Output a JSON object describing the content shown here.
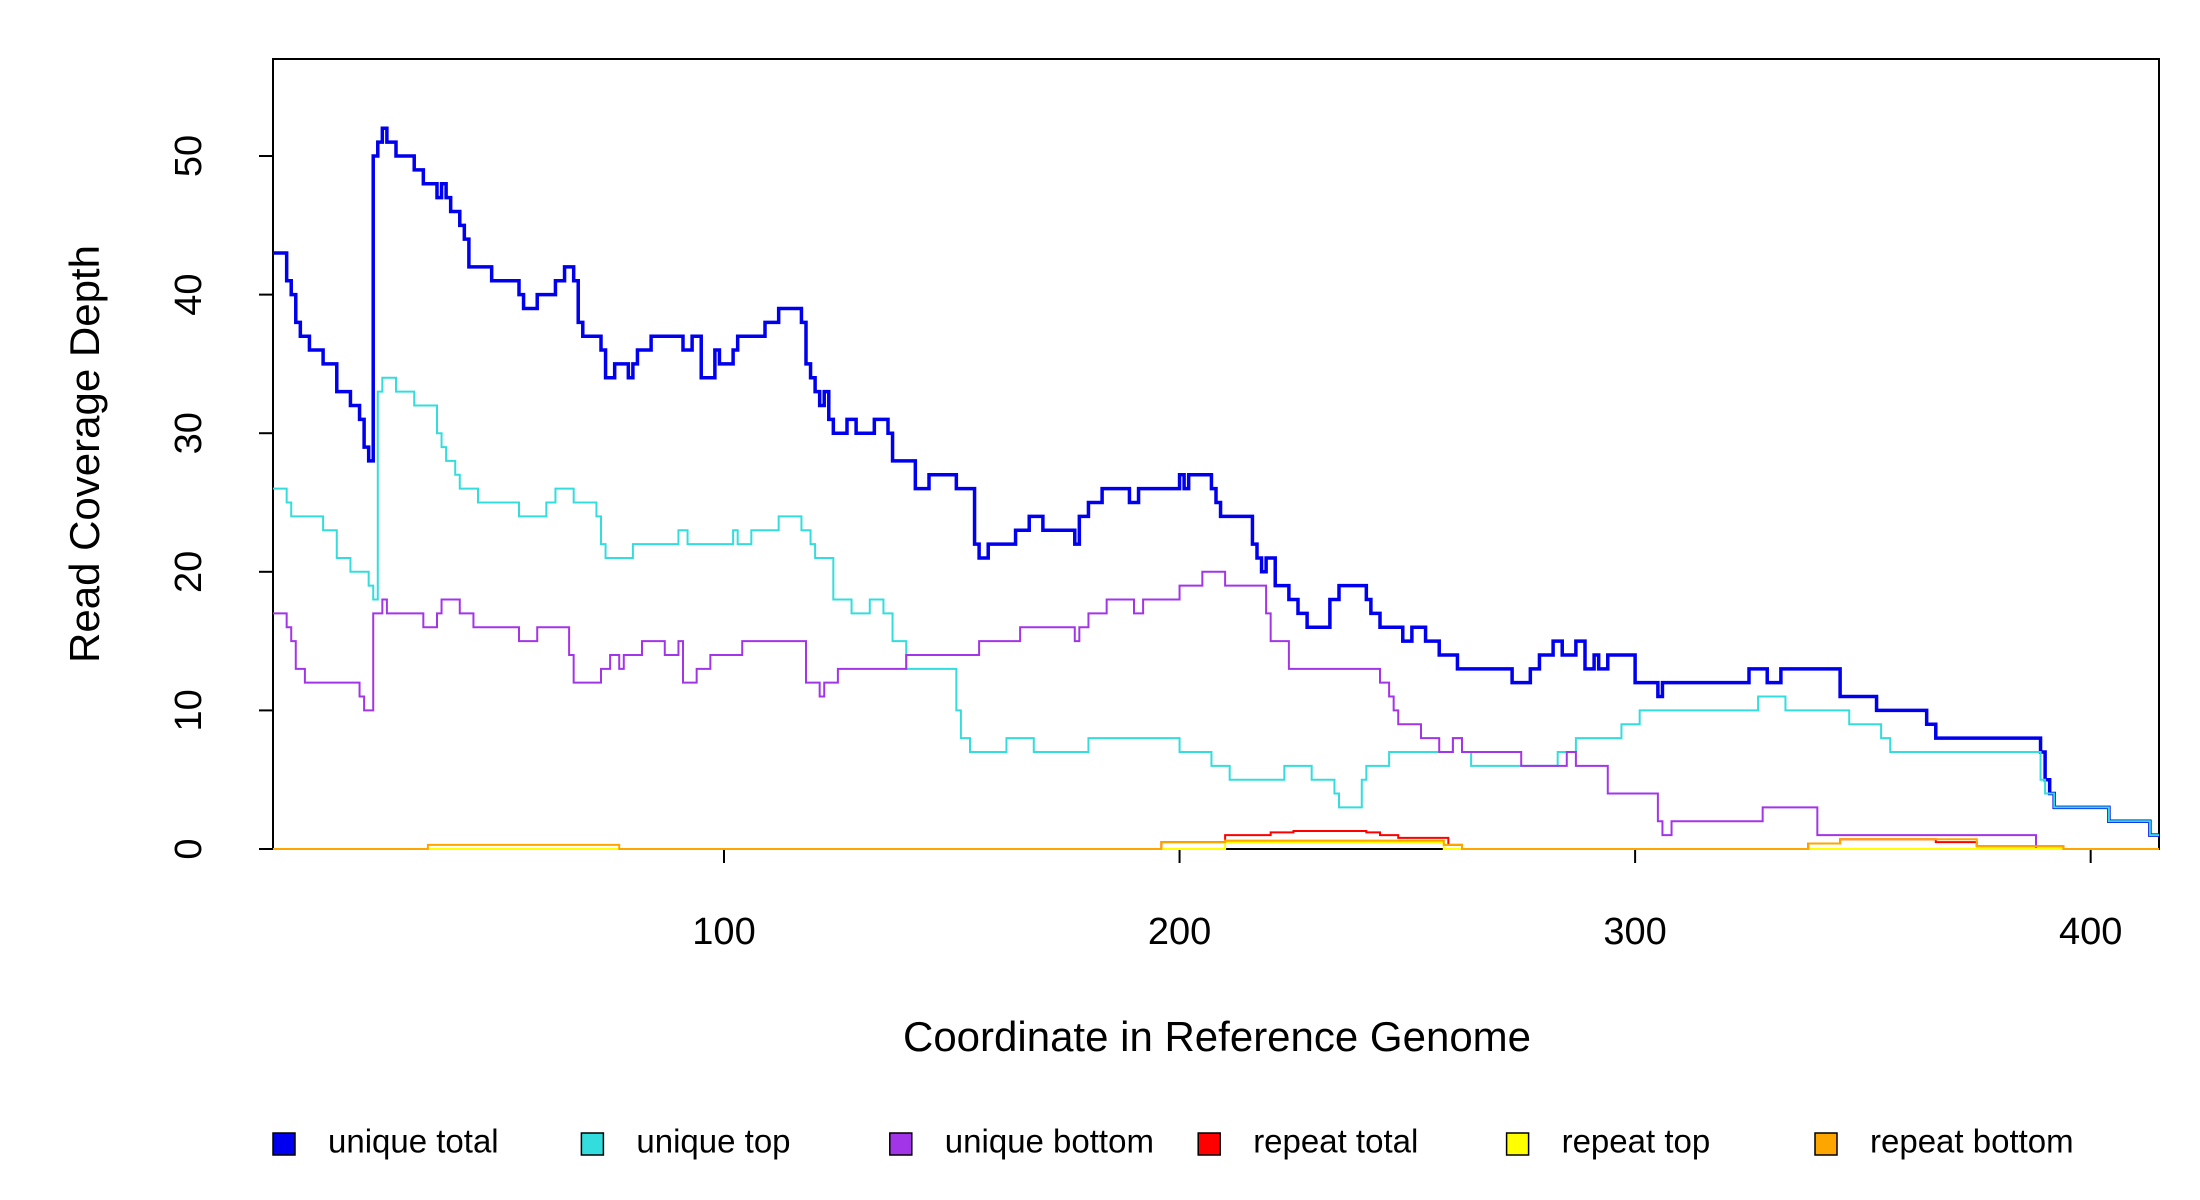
{
  "chart_data": {
    "type": "step",
    "xlabel": "Coordinate in Reference Genome",
    "ylabel": "Read Coverage Depth",
    "xlim": [
      1,
      415
    ],
    "ylim": [
      0,
      57
    ],
    "xticks": [
      100,
      200,
      300,
      400
    ],
    "yticks": [
      0,
      10,
      20,
      30,
      40,
      50
    ],
    "series": [
      {
        "name": "unique total",
        "color": "#0000ee",
        "x": [
          1,
          4,
          5,
          6,
          7,
          9,
          12,
          15,
          18,
          20,
          21,
          22,
          23,
          24,
          25,
          26,
          28,
          32,
          34,
          37,
          38,
          39,
          40,
          42,
          43,
          44,
          49,
          55,
          56,
          59,
          63,
          65,
          67,
          68,
          69,
          73,
          74,
          76,
          79,
          80,
          81,
          84,
          91,
          93,
          95,
          98,
          99,
          102,
          103,
          109,
          112,
          117,
          118,
          119,
          120,
          121,
          122,
          123,
          124,
          127,
          129,
          133,
          136,
          137,
          142,
          145,
          151,
          155,
          156,
          158,
          164,
          167,
          170,
          177,
          178,
          180,
          183,
          189,
          191,
          200,
          201,
          202,
          207,
          208,
          209,
          216,
          217,
          218,
          219,
          221,
          224,
          226,
          228,
          233,
          235,
          241,
          242,
          244,
          249,
          251,
          254,
          257,
          261,
          273,
          277,
          279,
          282,
          284,
          287,
          289,
          291,
          292,
          294,
          300,
          305,
          306,
          325,
          329,
          332,
          345,
          353,
          364,
          366,
          389,
          390,
          391,
          392,
          404,
          413,
          415
        ],
        "values": [
          43,
          41,
          40,
          38,
          37,
          36,
          35,
          33,
          32,
          31,
          29,
          28,
          50,
          51,
          52,
          51,
          50,
          49,
          48,
          47,
          48,
          47,
          46,
          45,
          44,
          42,
          41,
          40,
          39,
          40,
          41,
          42,
          41,
          38,
          37,
          36,
          34,
          35,
          34,
          35,
          36,
          37,
          36,
          37,
          34,
          36,
          35,
          36,
          37,
          38,
          39,
          38,
          35,
          34,
          33,
          32,
          33,
          31,
          30,
          31,
          30,
          31,
          30,
          28,
          26,
          27,
          26,
          22,
          21,
          22,
          23,
          24,
          23,
          22,
          24,
          25,
          26,
          25,
          26,
          27,
          26,
          27,
          26,
          25,
          24,
          22,
          21,
          20,
          21,
          19,
          18,
          17,
          16,
          18,
          19,
          18,
          17,
          16,
          15,
          16,
          15,
          14,
          13,
          12,
          13,
          14,
          15,
          14,
          15,
          13,
          14,
          13,
          14,
          12,
          11,
          12,
          13,
          12,
          13,
          11,
          10,
          9,
          8,
          7,
          5,
          4,
          3,
          2,
          1,
          1
        ]
      },
      {
        "name": "unique top",
        "color": "#33dddd",
        "x": [
          1,
          4,
          5,
          12,
          15,
          18,
          22,
          23,
          24,
          25,
          28,
          32,
          37,
          38,
          39,
          41,
          42,
          46,
          55,
          61,
          63,
          67,
          72,
          73,
          74,
          80,
          90,
          92,
          102,
          103,
          106,
          112,
          117,
          119,
          120,
          124,
          128,
          132,
          135,
          137,
          140,
          151,
          152,
          154,
          162,
          168,
          180,
          200,
          207,
          211,
          223,
          229,
          234,
          235,
          240,
          241,
          246,
          260,
          262,
          264,
          283,
          287,
          297,
          301,
          327,
          333,
          347,
          354,
          356,
          389,
          390,
          392,
          404,
          413,
          415
        ],
        "values": [
          26,
          25,
          24,
          23,
          21,
          20,
          19,
          18,
          33,
          34,
          33,
          32,
          30,
          29,
          28,
          27,
          26,
          25,
          24,
          25,
          26,
          25,
          24,
          22,
          21,
          22,
          23,
          22,
          23,
          22,
          23,
          24,
          23,
          22,
          21,
          18,
          17,
          18,
          17,
          15,
          13,
          10,
          8,
          7,
          8,
          7,
          8,
          7,
          6,
          5,
          6,
          5,
          4,
          3,
          5,
          6,
          7,
          8,
          7,
          6,
          7,
          8,
          9,
          10,
          11,
          10,
          9,
          8,
          7,
          5,
          4,
          3,
          2,
          1,
          1
        ]
      },
      {
        "name": "unique bottom",
        "color": "#a335e8",
        "x": [
          1,
          4,
          5,
          6,
          8,
          20,
          21,
          23,
          25,
          26,
          34,
          37,
          38,
          42,
          45,
          55,
          59,
          66,
          67,
          73,
          75,
          77,
          78,
          82,
          87,
          90,
          91,
          94,
          97,
          104,
          118,
          121,
          122,
          125,
          140,
          156,
          165,
          177,
          178,
          180,
          184,
          190,
          192,
          200,
          205,
          210,
          219,
          220,
          224,
          244,
          246,
          247,
          248,
          253,
          257,
          260,
          262,
          275,
          285,
          287,
          294,
          305,
          306,
          308,
          328,
          340,
          388,
          415
        ],
        "values": [
          17,
          16,
          15,
          13,
          12,
          11,
          10,
          17,
          18,
          17,
          16,
          17,
          18,
          17,
          16,
          15,
          16,
          14,
          12,
          13,
          14,
          13,
          14,
          15,
          14,
          15,
          12,
          13,
          14,
          15,
          12,
          11,
          12,
          13,
          14,
          15,
          16,
          15,
          16,
          17,
          18,
          17,
          18,
          19,
          20,
          19,
          17,
          15,
          13,
          12,
          11,
          10,
          9,
          8,
          7,
          8,
          7,
          6,
          7,
          6,
          4,
          2,
          1,
          2,
          3,
          1,
          0,
          0
        ]
      },
      {
        "name": "repeat total",
        "color": "#ff0000",
        "x": [
          1,
          196,
          210,
          220,
          225,
          241,
          244,
          248,
          259,
          262,
          338,
          345,
          366,
          375,
          394,
          415
        ],
        "values": [
          0,
          0.5,
          1,
          1.2,
          1.3,
          1.2,
          1,
          0.8,
          0.3,
          0,
          0.4,
          0.7,
          0.5,
          0.2,
          0,
          0
        ]
      },
      {
        "name": "repeat top",
        "color": "#ffff00",
        "x": [
          1,
          210,
          258,
          415
        ],
        "values": [
          0,
          0.5,
          0,
          0
        ]
      },
      {
        "name": "repeat bottom",
        "color": "#ffa500",
        "x": [
          1,
          35,
          77,
          196,
          210,
          258,
          262,
          338,
          345,
          375,
          394,
          415
        ],
        "values": [
          0,
          0.3,
          0,
          0.5,
          0.6,
          0.3,
          0,
          0.4,
          0.7,
          0.2,
          0,
          0
        ]
      }
    ]
  }
}
